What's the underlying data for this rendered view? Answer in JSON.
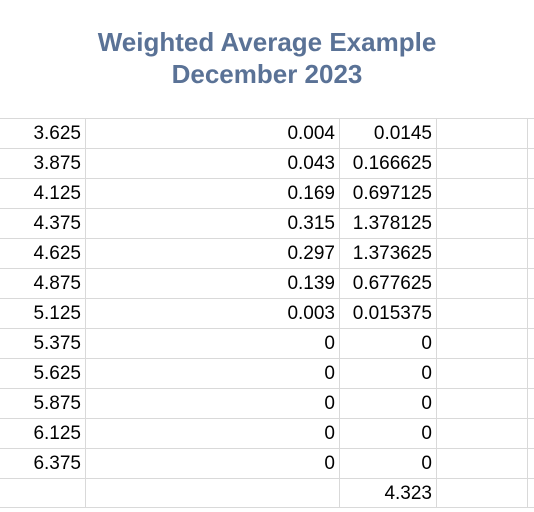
{
  "sheet": {
    "title_line1": "Weighted Average Example",
    "title_line2": "December 2023",
    "rows": [
      {
        "a": "3.625",
        "b": "0.004",
        "c": "0.0145"
      },
      {
        "a": "3.875",
        "b": "0.043",
        "c": "0.166625"
      },
      {
        "a": "4.125",
        "b": "0.169",
        "c": "0.697125"
      },
      {
        "a": "4.375",
        "b": "0.315",
        "c": "1.378125"
      },
      {
        "a": "4.625",
        "b": "0.297",
        "c": "1.373625"
      },
      {
        "a": "4.875",
        "b": "0.139",
        "c": "0.677625"
      },
      {
        "a": "5.125",
        "b": "0.003",
        "c": "0.015375"
      },
      {
        "a": "5.375",
        "b": "0",
        "c": "0"
      },
      {
        "a": "5.625",
        "b": "0",
        "c": "0"
      },
      {
        "a": "5.875",
        "b": "0",
        "c": "0"
      },
      {
        "a": "6.125",
        "b": "0",
        "c": "0"
      },
      {
        "a": "6.375",
        "b": "0",
        "c": "0"
      },
      {
        "a": "",
        "b": "",
        "c": "4.323"
      }
    ]
  }
}
